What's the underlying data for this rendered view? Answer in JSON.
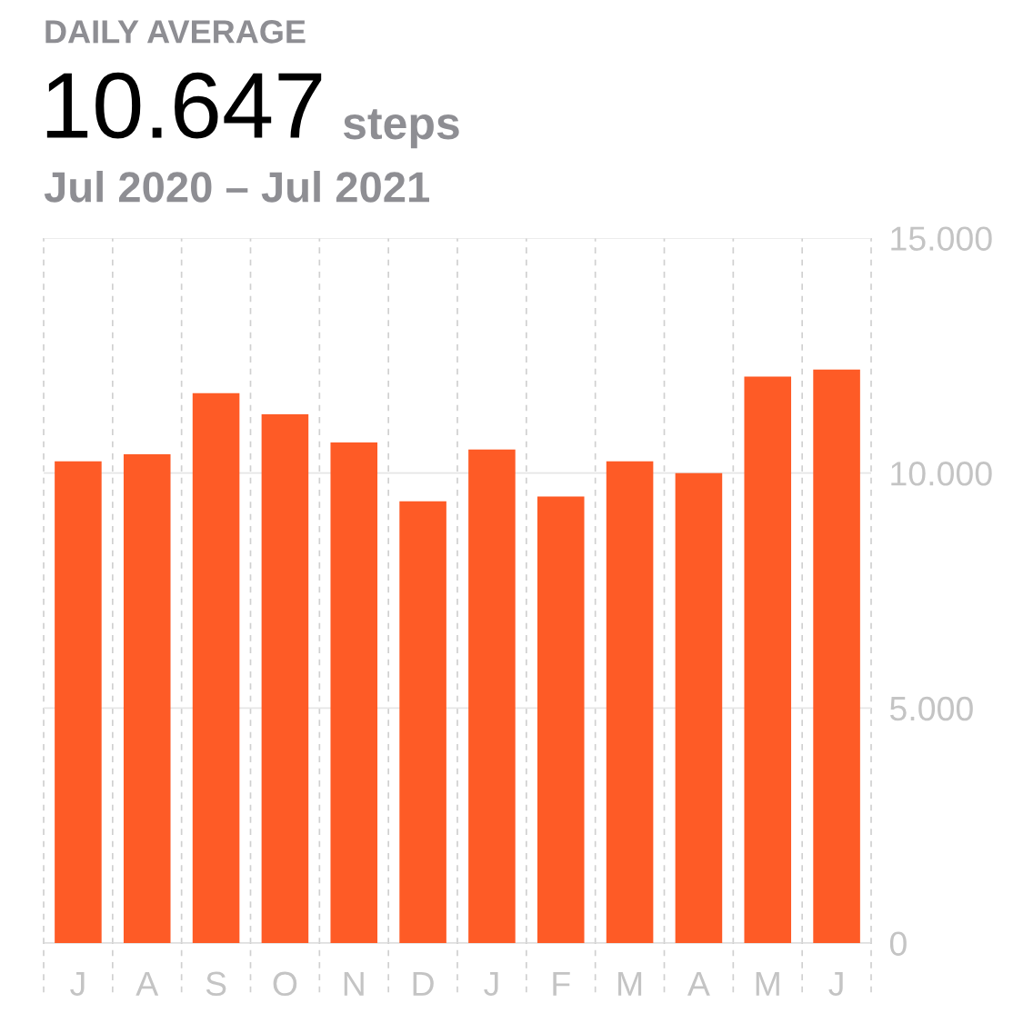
{
  "chart_data": {
    "type": "bar",
    "title": "DAILY AVERAGE",
    "subtitle": "10.647 steps",
    "annotations": [
      "Jul 2020 – Jul 2021"
    ],
    "categories": [
      "J",
      "A",
      "S",
      "O",
      "N",
      "D",
      "J",
      "F",
      "M",
      "A",
      "M",
      "J"
    ],
    "values": [
      10250,
      10400,
      11700,
      11250,
      10650,
      9400,
      10500,
      9500,
      10250,
      10000,
      12050,
      12200
    ],
    "color": "#fe5b26",
    "ylim": [
      0,
      15000
    ],
    "yticks": [
      {
        "value": 0,
        "label": "0"
      },
      {
        "value": 5000,
        "label": "5.000"
      },
      {
        "value": 10000,
        "label": "10.000"
      },
      {
        "value": 15000,
        "label": "15.000"
      }
    ],
    "grid": true
  }
}
